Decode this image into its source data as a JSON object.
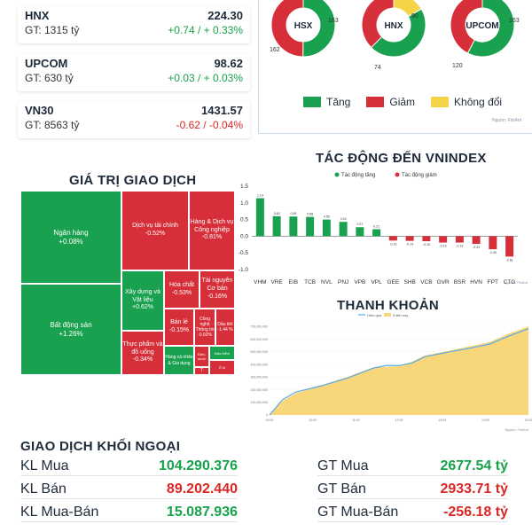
{
  "colors": {
    "up": "#1aa14f",
    "down": "#d62f3a",
    "unchanged": "#f5d547",
    "line_blue": "#5aa9e6",
    "area_yellow": "#f8d77a"
  },
  "indices": [
    {
      "name": "HNX",
      "value": "224.30",
      "gt": "GT: 1315 tỷ",
      "change": "+0.74 / + 0.33%",
      "direction": "up"
    },
    {
      "name": "UPCOM",
      "value": "98.62",
      "gt": "GT: 630 tỷ",
      "change": "+0.03 / + 0.03%",
      "direction": "up"
    },
    {
      "name": "VN30",
      "value": "1431.57",
      "gt": "GT: 8563 tỷ",
      "change": "-0.62 / -0.04%",
      "direction": "down"
    }
  ],
  "breadth": [
    {
      "label": "HSX",
      "up": 163,
      "down": 162,
      "unchanged": 0,
      "shown_labels": [
        "163",
        "162"
      ]
    },
    {
      "label": "HNX",
      "up": 90,
      "down": 74,
      "unchanged": 33,
      "shown_labels": [
        "33",
        "90",
        "74"
      ]
    },
    {
      "label": "UPCOM",
      "up": 163,
      "down": 120,
      "unchanged": 0,
      "shown_labels": [
        "163",
        "120"
      ]
    }
  ],
  "legend": {
    "up": "Tăng",
    "down": "Giảm",
    "unchanged": "Không đổi"
  },
  "source_note": "Nguồn: FiinAnt",
  "titles": {
    "impact": "TÁC ĐỘNG ĐẾN VNINDEX",
    "trade_value": "GIÁ TRỊ GIAO DỊCH",
    "liquidity": "THANH KHOẢN",
    "foreign": "GIAO DỊCH KHỐI NGOẠI"
  },
  "treemap": [
    {
      "name": "Ngân hàng",
      "change": "+0.08%",
      "color": "up"
    },
    {
      "name": "Bất động sản",
      "change": "+1.26%",
      "color": "up"
    },
    {
      "name": "Dịch vụ tài chính",
      "change": "-0.52%",
      "color": "down"
    },
    {
      "name": "Hàng & Dịch vụ Công nghiệp",
      "change": "-0.81%",
      "color": "down"
    },
    {
      "name": "Xây dựng và Vật liệu",
      "change": "+0.62%",
      "color": "up"
    },
    {
      "name": "Hóa chất",
      "change": "-0.53%",
      "color": "down"
    },
    {
      "name": "Tài nguyên Cơ bản",
      "change": "-0.16%",
      "color": "down"
    },
    {
      "name": "Bán lẻ",
      "change": "-0.15%",
      "color": "down"
    },
    {
      "name": "Công nghệ Thông tin",
      "change": "-0.02%",
      "color": "down"
    },
    {
      "name": "Dầu khí",
      "change": "-1.44 %",
      "color": "down"
    },
    {
      "name": "Thực phẩm và đồ uống",
      "change": "-0.34%",
      "color": "down"
    },
    {
      "name": "Hàng cá nhân & Gia dụng",
      "change": "",
      "color": "up"
    },
    {
      "name": "Điện, nước",
      "change": "",
      "color": "down"
    },
    {
      "name": "Bảo hiểm",
      "change": "",
      "color": "up"
    },
    {
      "name": "Ô tô",
      "change": "",
      "color": "down"
    },
    {
      "name": "T",
      "change": "",
      "color": "down"
    }
  ],
  "chart_data": [
    {
      "type": "bar",
      "title": "TÁC ĐỘNG ĐẾN VNINDEX",
      "legend": [
        "Tác động tăng",
        "Tác động giảm"
      ],
      "categories": [
        "VHM",
        "VRE",
        "EIB",
        "TCB",
        "NVL",
        "PNJ",
        "VPB",
        "VPL",
        "GEE",
        "SHB",
        "VCB",
        "GVR",
        "BSR",
        "HVN",
        "FPT",
        "CTG"
      ],
      "values": [
        1.14,
        0.6,
        0.59,
        0.58,
        0.5,
        0.43,
        0.27,
        0.21,
        -0.13,
        -0.14,
        -0.15,
        -0.19,
        -0.19,
        -0.23,
        -0.39,
        -0.61
      ],
      "value_labels": [
        "1.14",
        "0.60",
        "0.59",
        "0.58",
        "0.50",
        "0.43",
        "0.27",
        "0.21",
        "-0.13",
        "-0.14",
        "-0.15",
        "-0.19",
        "-0.19",
        "-0.23",
        "-0.39",
        "-0.61"
      ],
      "ylim": [
        -1.0,
        1.5
      ],
      "yticks": [
        "1.5",
        "1.0",
        "0.5",
        "0.0",
        "-0.5",
        "-1.0"
      ],
      "grid": false
    },
    {
      "type": "area",
      "title": "THANH KHOẢN",
      "legend": [
        "Hôm qua",
        "9 tiên nay"
      ],
      "x_ticks": [
        "09:00",
        "10:00",
        "11:00",
        "12:00",
        "13:00",
        "14:00",
        "15:00"
      ],
      "y_ticks": [
        "700,000,000",
        "600,000,000",
        "500,000,000",
        "400,000,000",
        "300,000,000",
        "200,000,000",
        "100,000,000",
        "0"
      ],
      "x": [
        0,
        0.05,
        0.1,
        0.2,
        0.3,
        0.4,
        0.45,
        0.5,
        0.55,
        0.6,
        0.7,
        0.78,
        0.85,
        0.92,
        1.0
      ],
      "series": [
        {
          "name": "Hôm qua",
          "values": [
            0,
            120,
            180,
            230,
            290,
            370,
            390,
            390,
            410,
            460,
            500,
            530,
            560,
            620,
            680
          ]
        },
        {
          "name": "9 tiên nay",
          "values": [
            0,
            110,
            170,
            235,
            300,
            375,
            380,
            385,
            420,
            470,
            510,
            545,
            575,
            640,
            700
          ]
        }
      ],
      "ylim": [
        0,
        700000000
      ]
    }
  ],
  "foreign": {
    "left": [
      {
        "label": "KL Mua",
        "value": "104.290.376",
        "color": "up"
      },
      {
        "label": "KL Bán",
        "value": "89.202.440",
        "color": "down"
      },
      {
        "label": "KL Mua-Bán",
        "value": "15.087.936",
        "color": "up"
      }
    ],
    "right": [
      {
        "label": "GT Mua",
        "value": "2677.54 tỷ",
        "color": "up"
      },
      {
        "label": "GT Bán",
        "value": "2933.71 tỷ",
        "color": "down"
      },
      {
        "label": "GT Mua-Bán",
        "value": "-256.18 tỷ",
        "color": "down"
      }
    ]
  }
}
